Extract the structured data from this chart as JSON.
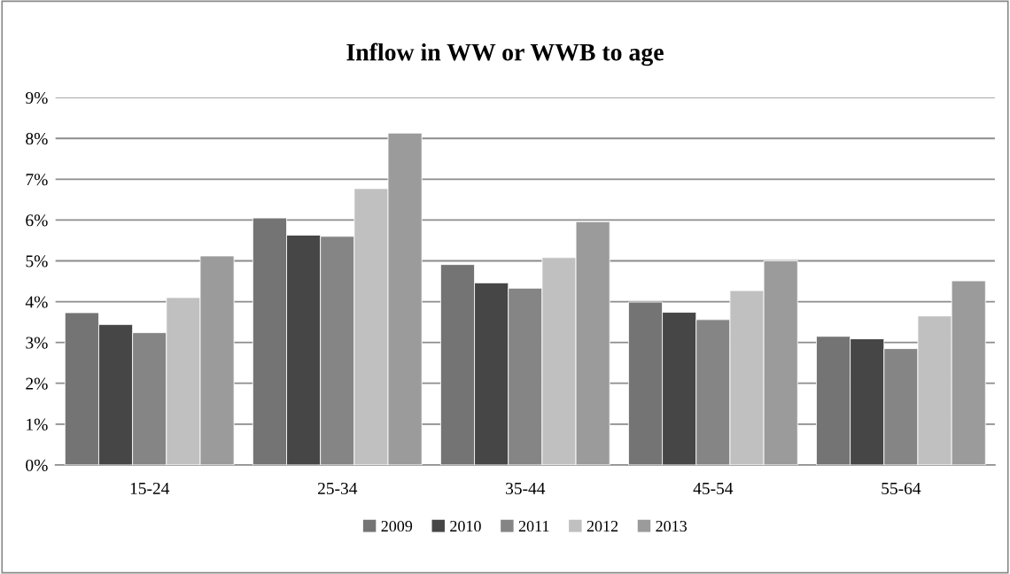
{
  "chart_data": {
    "type": "bar",
    "title": "Inflow in WW or WWB to age",
    "categories": [
      "15-24",
      "25-34",
      "35-44",
      "45-54",
      "55-64"
    ],
    "series": [
      {
        "name": "2009",
        "color": "#747474",
        "values": [
          3.73,
          6.05,
          4.91,
          3.99,
          3.15
        ]
      },
      {
        "name": "2010",
        "color": "#464646",
        "values": [
          3.44,
          5.63,
          4.46,
          3.74,
          3.09
        ]
      },
      {
        "name": "2011",
        "color": "#858585",
        "values": [
          3.24,
          5.6,
          4.33,
          3.56,
          2.85
        ]
      },
      {
        "name": "2012",
        "color": "#c0c0c0",
        "values": [
          4.1,
          6.77,
          5.08,
          4.27,
          3.65
        ]
      },
      {
        "name": "2013",
        "color": "#9b9b9b",
        "values": [
          5.12,
          8.13,
          5.96,
          5.0,
          4.51
        ]
      }
    ],
    "ylim": [
      0,
      9
    ],
    "yticks": [
      {
        "value": 0,
        "label": "0%"
      },
      {
        "value": 1,
        "label": "1%"
      },
      {
        "value": 2,
        "label": "2%"
      },
      {
        "value": 3,
        "label": "3%"
      },
      {
        "value": 4,
        "label": "4%"
      },
      {
        "value": 5,
        "label": "5%"
      },
      {
        "value": 6,
        "label": "6%"
      },
      {
        "value": 7,
        "label": "7%"
      },
      {
        "value": 8,
        "label": "8%"
      },
      {
        "value": 9,
        "label": "9%"
      }
    ],
    "grid": "y",
    "legend": "bottom"
  }
}
